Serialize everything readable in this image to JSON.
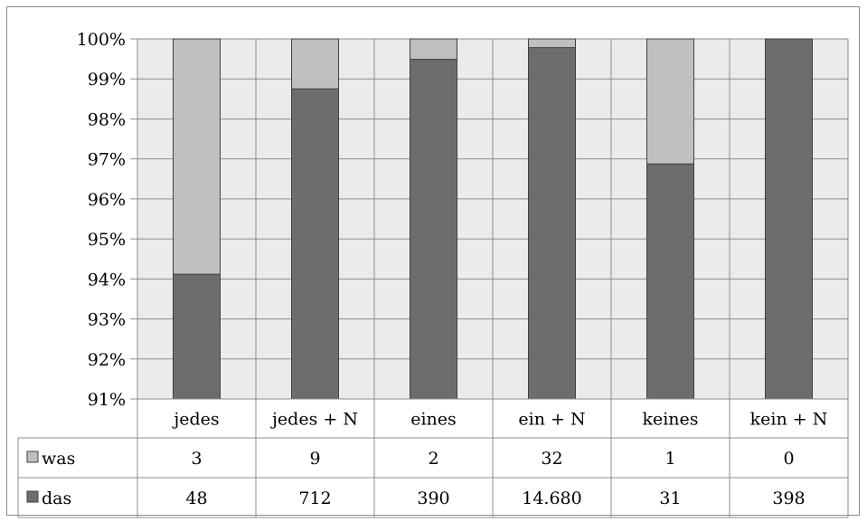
{
  "chart_data": {
    "type": "bar",
    "stacked": "percent",
    "categories": [
      "jedes",
      "jedes + N",
      "eines",
      "ein + N",
      "keines",
      "kein + N"
    ],
    "series": [
      {
        "name": "was",
        "values": [
          3,
          9,
          2,
          32,
          1,
          0
        ],
        "labels": [
          "3",
          "9",
          "2",
          "32",
          "1",
          "0"
        ],
        "color": "#bfbfbf"
      },
      {
        "name": "das",
        "values": [
          48,
          712,
          390,
          14680,
          31,
          398
        ],
        "labels": [
          "48",
          "712",
          "390",
          "14.680",
          "31",
          "398"
        ],
        "color": "#6d6d6d"
      }
    ],
    "ylim": [
      0.91,
      1.0
    ],
    "yticks": [
      "91%",
      "92%",
      "93%",
      "94%",
      "95%",
      "96%",
      "97%",
      "98%",
      "99%",
      "100%"
    ],
    "grid": true,
    "plot_background": "#ebebeb",
    "data_table": true
  }
}
